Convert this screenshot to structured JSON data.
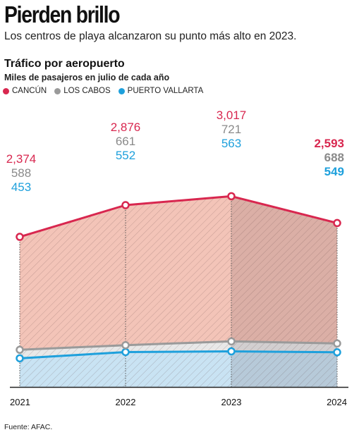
{
  "header": {
    "title": "Pierden brillo",
    "subtitle": "Los centros de playa alcanzaron su punto más alto en 2023.",
    "chart_title": "Tráfico por aeropuerto",
    "units": "Miles de pasajeros en julio de cada año"
  },
  "legend": [
    {
      "label": "CANCÚN",
      "color": "#d8274f"
    },
    {
      "label": "LOS CABOS",
      "color": "#9a9a9a"
    },
    {
      "label": "PUERTO VALLARTA",
      "color": "#1ea0dc"
    }
  ],
  "footer": {
    "source": "Fuente: AFAC."
  },
  "chart_data": {
    "type": "area",
    "title": "Tráfico por aeropuerto",
    "ylabel": "Miles de pasajeros en julio de cada año",
    "categories": [
      "2021",
      "2022",
      "2023",
      "2024"
    ],
    "series": [
      {
        "name": "CANCÚN",
        "color": "#d8274f",
        "fill": "#f3c4b8",
        "values": [
          2374,
          2876,
          3017,
          2593
        ],
        "labels": [
          "2,374",
          "2,876",
          "3,017",
          "2,593"
        ]
      },
      {
        "name": "LOS CABOS",
        "color": "#9a9a9a",
        "fill": "#e8e8e8",
        "values": [
          588,
          661,
          721,
          688
        ],
        "labels": [
          "588",
          "661",
          "721",
          "688"
        ]
      },
      {
        "name": "PUERTO VALLARTA",
        "color": "#1ea0dc",
        "fill": "#c9e3f3",
        "values": [
          453,
          552,
          563,
          549
        ],
        "labels": [
          "453",
          "552",
          "563",
          "549"
        ]
      }
    ],
    "ylim": [
      0,
      3400
    ],
    "highlight_last": true,
    "hatched": true,
    "legend_position": "top-left"
  }
}
